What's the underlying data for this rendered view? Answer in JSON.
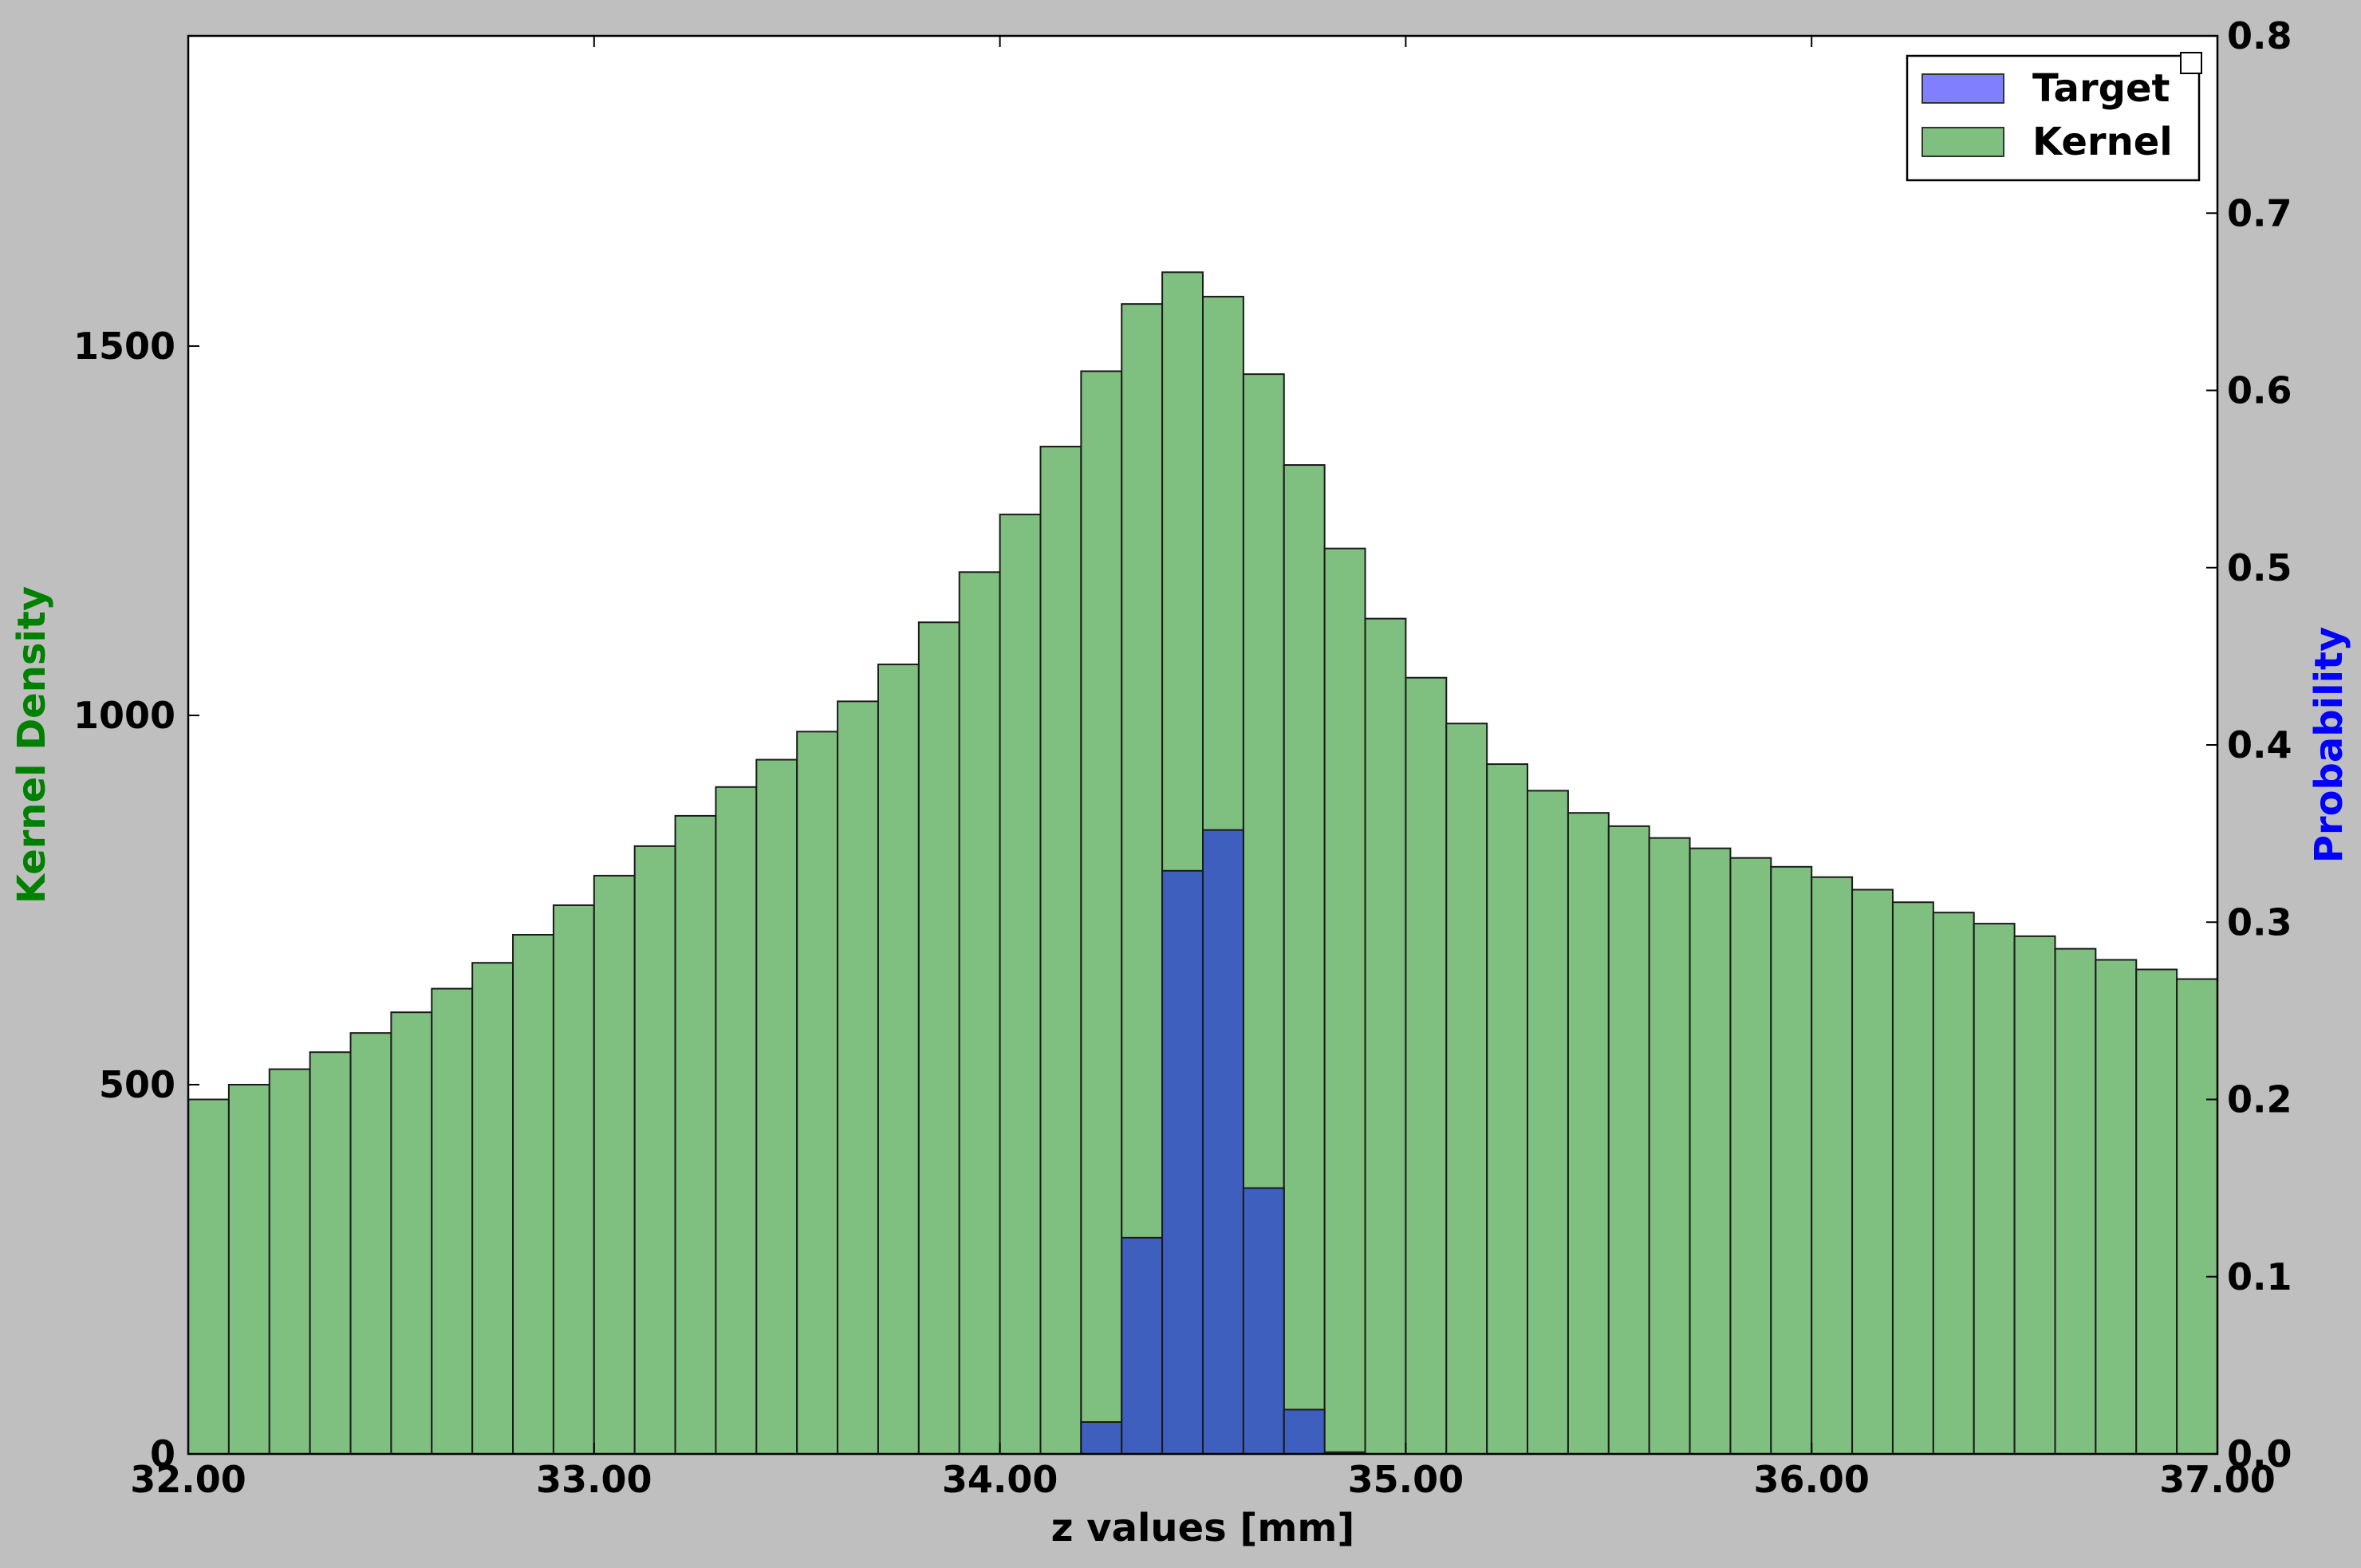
{
  "chart_data": {
    "type": "bar",
    "title": "",
    "xlabel": "z values [mm]",
    "ylabel_left": "Kernel Density",
    "ylabel_right": "Probability",
    "xlim": [
      32.0,
      37.0
    ],
    "ylim_left": [
      0,
      1920
    ],
    "ylim_right": [
      0,
      0.8
    ],
    "bin_width": 0.1,
    "x_ticks": [
      32.0,
      33.0,
      34.0,
      35.0,
      36.0,
      37.0
    ],
    "x_tick_labels": [
      "32.00",
      "33.00",
      "34.00",
      "35.00",
      "36.00",
      "37.00"
    ],
    "y_left_ticks": [
      0,
      500,
      1000,
      1500
    ],
    "y_left_tick_labels": [
      "0",
      "500",
      "1000",
      "1500"
    ],
    "y_right_ticks": [
      0.0,
      0.1,
      0.2,
      0.3,
      0.4,
      0.5,
      0.6,
      0.7,
      0.8
    ],
    "y_right_tick_labels": [
      "0.0",
      "0.1",
      "0.2",
      "0.3",
      "0.4",
      "0.5",
      "0.6",
      "0.7",
      "0.8"
    ],
    "legend_position": "top-right",
    "grid": false,
    "series": [
      {
        "name": "Kernel",
        "axis": "left",
        "color": "#7fbf7f",
        "x": [
          32.0,
          32.1,
          32.2,
          32.3,
          32.4,
          32.5,
          32.6,
          32.7,
          32.8,
          32.9,
          33.0,
          33.1,
          33.2,
          33.3,
          33.4,
          33.5,
          33.6,
          33.7,
          33.8,
          33.9,
          34.0,
          34.1,
          34.2,
          34.3,
          34.4,
          34.5,
          34.6,
          34.7,
          34.8,
          34.9,
          35.0,
          35.1,
          35.2,
          35.3,
          35.4,
          35.5,
          35.6,
          35.7,
          35.8,
          35.9,
          36.0,
          36.1,
          36.2,
          36.3,
          36.4,
          36.5,
          36.6,
          36.7,
          36.8,
          36.9
        ],
        "values": [
          480,
          500,
          521,
          544,
          570,
          598,
          630,
          665,
          703,
          743,
          783,
          823,
          864,
          903,
          940,
          978,
          1019,
          1069,
          1126,
          1194,
          1272,
          1364,
          1466,
          1557,
          1600,
          1567,
          1462,
          1339,
          1226,
          1131,
          1051,
          989,
          934,
          898,
          868,
          850,
          834,
          820,
          807,
          795,
          781,
          764,
          747,
          733,
          718,
          701,
          684,
          669,
          656,
          643
        ]
      },
      {
        "name": "Target",
        "axis": "right",
        "color": "#0000ff",
        "x": [
          34.2,
          34.3,
          34.4,
          34.5,
          34.6,
          34.7,
          34.8
        ],
        "values": [
          0.018,
          0.122,
          0.329,
          0.352,
          0.15,
          0.025,
          0.001
        ]
      }
    ]
  }
}
